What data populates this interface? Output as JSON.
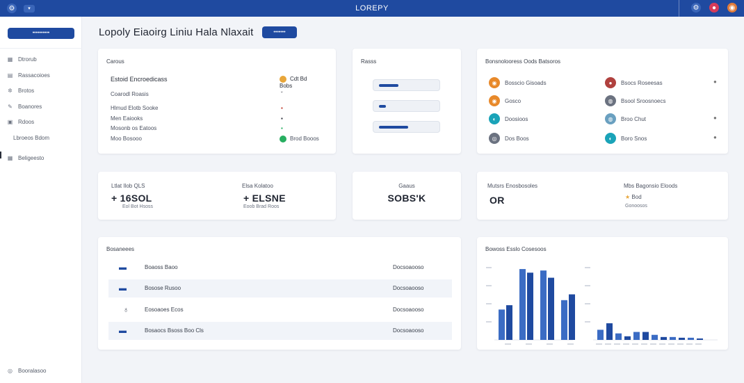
{
  "topbar": {
    "title": "LOREPY",
    "left_icons": [
      "settings-icon",
      "chat-icon"
    ],
    "right_icons": [
      "settings-icon",
      "alert-icon",
      "avatar-icon"
    ]
  },
  "sidebar": {
    "primary_button": "••••••••••",
    "items": [
      {
        "label": "Dtrorub",
        "icon": "grid-icon"
      },
      {
        "label": "Rassacoioes",
        "icon": "list-icon"
      },
      {
        "label": "Brotos",
        "icon": "gear-icon"
      },
      {
        "label": "Boanores",
        "icon": "user-icon"
      },
      {
        "label": "Rdoos",
        "icon": "box-icon"
      },
      {
        "label": "Lbroeos Bdom",
        "icon": ""
      },
      {
        "label": "Beligeesto",
        "icon": "grid-icon"
      }
    ],
    "footer": "Booralasoo"
  },
  "page": {
    "title": "Lopoly Eiaoirg Liniu Hala Nlaxait",
    "badge": "•••••••"
  },
  "overview": {
    "heading": "Carous",
    "rows": [
      {
        "label": "Estoid Encroedicass",
        "value": "Cdt Bd Bobs"
      },
      {
        "label": "Coarodl Roasis",
        "value": ""
      },
      {
        "label": "Hlmud Elotb Sooke",
        "value": ""
      },
      {
        "label": "Men Eaiooks",
        "value": ""
      },
      {
        "label": "Mosonb os Eatoos",
        "value": ""
      },
      {
        "label": "Moo Bosooo",
        "value": "Brod Booos"
      }
    ],
    "row_colors": [
      "#e8a63a",
      null,
      "#c0392b",
      "#2a2f3a",
      "#27ae60",
      "#27ae60"
    ]
  },
  "fields": {
    "heading": "Rasss"
  },
  "contacts": {
    "heading": "Bonsnolooress Oods Batsoros",
    "items": [
      {
        "label": "Bosscio Gisoads",
        "color": "#e8892a",
        "glyph": "◉"
      },
      {
        "label": "Bsocs Roseesas",
        "color": "#b0413e",
        "glyph": "●"
      },
      {
        "label": "Gosco",
        "color": "#e8892a",
        "glyph": "◉"
      },
      {
        "label": "Bsool Sroosnoecs",
        "color": "#6b7280",
        "glyph": "◍"
      },
      {
        "label": "Doosioos",
        "color": "#1aa3b8",
        "glyph": "◐"
      },
      {
        "label": "Broo Chut",
        "color": "#6aa0c0",
        "glyph": "◍"
      },
      {
        "label": "Dos Boos",
        "color": "#6b7280",
        "glyph": "◎"
      },
      {
        "label": "Boro Snos",
        "color": "#1aa3b8",
        "glyph": "◐"
      }
    ]
  },
  "stats": {
    "a": {
      "label": "Ltlat Ilob QLS",
      "value": "+ 16SOL",
      "sub": "Eol Bot Hsoss"
    },
    "b": {
      "label": "Elsa Kolatoo",
      "value": "+ ELSNE",
      "sub": "Eoob Brad Roos"
    },
    "c": {
      "label": "Gaaus",
      "value": "SOBS'K"
    },
    "d": {
      "label": "Mutsrs Enosbosoles",
      "value": "OR"
    },
    "e": {
      "label": "Mbs Bagonsio Eloods",
      "value": "Bod",
      "sub": "Gonoosos"
    }
  },
  "list": {
    "heading": "Bosaneees",
    "rows": [
      {
        "label": "Boaoss Baoo",
        "value": "Docsoaooso"
      },
      {
        "label": "Bosose Rusoo",
        "value": "Docsoaooso"
      },
      {
        "label": "Eosoaoes Ecos",
        "value": "Docsoaooso"
      },
      {
        "label": "Bosaocs Bsoss Boo Cls",
        "value": "Docsoaooso"
      }
    ]
  },
  "chart_data": {
    "type": "bar",
    "title": "Bowoss Esslo Cosesoos",
    "colors": {
      "dark": "#1f4aa0",
      "light": "#3b6cc4"
    },
    "series": [
      {
        "name": "",
        "values": [
          42,
          48,
          98,
          93,
          96,
          86,
          55,
          63
        ]
      },
      {
        "name": "",
        "values": [
          14,
          23,
          9,
          5,
          11,
          11,
          7,
          4,
          4,
          3,
          3,
          2
        ]
      }
    ],
    "ylim": [
      0,
      100
    ]
  }
}
